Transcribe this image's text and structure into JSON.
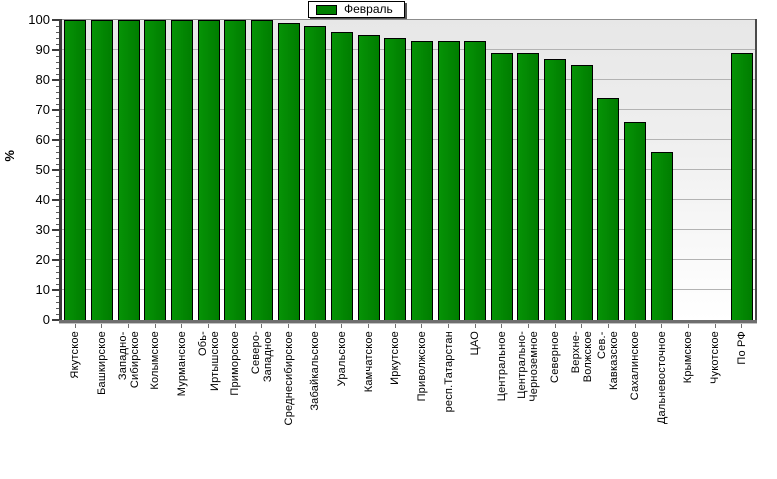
{
  "legend": {
    "label": "Февраль",
    "swatch_color": "#008000"
  },
  "y_axis": {
    "title": "%",
    "min": 0,
    "max": 100,
    "major_step": 10,
    "minor_step": 2,
    "tick_labels": [
      "0",
      "10",
      "20",
      "30",
      "40",
      "50",
      "60",
      "70",
      "80",
      "90",
      "100"
    ]
  },
  "colors": {
    "bar_fill": "#008000",
    "bar_border": "#000000",
    "gridline": "#b3b3b3",
    "plot_bg_top": "#e7e7e7",
    "plot_bg_bottom": "#ffffff"
  },
  "chart_data": {
    "type": "bar",
    "title": "",
    "xlabel": "",
    "ylabel": "%",
    "ylim": [
      0,
      100
    ],
    "grid": true,
    "legend_position": "top-center",
    "categories": [
      "Якутское",
      "Башкирское",
      "Западно-\nСибирское",
      "Колымское",
      "Мурманское",
      "Обь-\nИртышское",
      "Приморское",
      "Северо-\nЗападное",
      "Среднесибирское",
      "Забайкальское",
      "Уральское",
      "Камчатское",
      "Иркутское",
      "Приволжское",
      "респ.Татарстан",
      "ЦАО",
      "Центральное",
      "Центрально-\nЧерноземное",
      "Северное",
      "Верхне-\nВолжское",
      "Сев.-\nКавказское",
      "Сахалинское",
      "Дальневосточное",
      "Крымское",
      "Чукотское",
      "По РФ"
    ],
    "series": [
      {
        "name": "Февраль",
        "values": [
          100,
          100,
          100,
          100,
          100,
          100,
          100,
          100,
          99,
          98,
          96,
          95,
          94,
          93,
          93,
          93,
          89,
          89,
          87,
          85,
          74,
          66,
          56,
          0,
          0,
          89
        ]
      }
    ]
  }
}
